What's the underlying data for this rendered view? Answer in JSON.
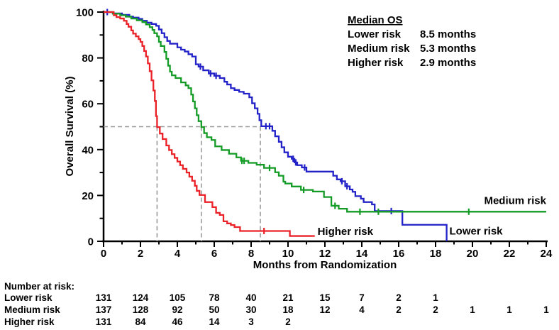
{
  "figure": {
    "background": "#FFFFFF"
  },
  "chart_data": {
    "type": "line",
    "subtype": "kaplan-meier-step",
    "title": "",
    "xlabel": "Months from Randomization",
    "ylabel": "Overall Survival (%)",
    "xlim": [
      0,
      24
    ],
    "ylim": [
      0,
      100
    ],
    "grid": "off",
    "x_major_ticks": [
      0,
      2,
      4,
      6,
      8,
      10,
      12,
      14,
      16,
      18,
      20,
      22,
      24
    ],
    "x_minor_ticks": [
      1,
      3,
      5,
      7,
      9,
      11,
      13,
      15,
      17,
      19,
      21,
      23
    ],
    "y_major_ticks": [
      0,
      20,
      40,
      60,
      80,
      100
    ],
    "y_minor_ticks": [
      10,
      30,
      50,
      70,
      90
    ],
    "reference_lines": {
      "style": "dashed",
      "color": "#9A9A9A",
      "horizontal_y": 50,
      "horizontal_x_start": 0,
      "horizontal_x_end": 8.5,
      "vertical_x": [
        2.9,
        5.3,
        8.5
      ]
    },
    "legend": {
      "position": "top-right",
      "title": "Median OS",
      "items": [
        {
          "label": "Lower risk",
          "value": "8.5 months",
          "color": "#2222C8"
        },
        {
          "label": "Medium risk",
          "value": "5.3 months",
          "color": "#149B25"
        },
        {
          "label": "Higher risk",
          "value": "2.9 months",
          "color": "#EA2127"
        }
      ]
    },
    "series": [
      {
        "name": "Lower risk",
        "color": "#2222C8",
        "median_os_months": 8.5,
        "inline_label": {
          "text": "Lower risk",
          "x": 18.75,
          "y": 3.0,
          "anchor": "start"
        },
        "end_x": 18.6,
        "points": [
          [
            0,
            100
          ],
          [
            0.5,
            99.4
          ],
          [
            1.0,
            98.8
          ],
          [
            1.4,
            98.0
          ],
          [
            1.6,
            97.6
          ],
          [
            1.9,
            97.0
          ],
          [
            2.1,
            96.2
          ],
          [
            2.35,
            95.4
          ],
          [
            2.6,
            94.8
          ],
          [
            2.85,
            94.0
          ],
          [
            3.0,
            92.4
          ],
          [
            3.15,
            90.8
          ],
          [
            3.3,
            89.0
          ],
          [
            3.45,
            87.4
          ],
          [
            3.6,
            86.2
          ],
          [
            4.0,
            84.6
          ],
          [
            4.2,
            83.6
          ],
          [
            4.4,
            82.8
          ],
          [
            4.6,
            81.6
          ],
          [
            4.8,
            80.6
          ],
          [
            5.0,
            77.2
          ],
          [
            5.15,
            76.2
          ],
          [
            5.4,
            74.6
          ],
          [
            5.7,
            73.2
          ],
          [
            6.0,
            72.2
          ],
          [
            6.3,
            71.2
          ],
          [
            6.55,
            69.6
          ],
          [
            6.7,
            68.4
          ],
          [
            6.9,
            66.8
          ],
          [
            7.1,
            66.0
          ],
          [
            7.35,
            65.2
          ],
          [
            7.6,
            64.4
          ],
          [
            7.9,
            62.8
          ],
          [
            8.05,
            60.2
          ],
          [
            8.2,
            58.0
          ],
          [
            8.35,
            55.6
          ],
          [
            8.45,
            52.8
          ],
          [
            8.55,
            50.2
          ],
          [
            9.15,
            48.2
          ],
          [
            9.3,
            45.8
          ],
          [
            9.5,
            43.4
          ],
          [
            9.65,
            41.0
          ],
          [
            9.8,
            38.8
          ],
          [
            10.0,
            36.9
          ],
          [
            10.2,
            36.0
          ],
          [
            10.35,
            34.4
          ],
          [
            10.5,
            33.2
          ],
          [
            10.75,
            32.2
          ],
          [
            11.0,
            30.4
          ],
          [
            12.45,
            28.6
          ],
          [
            12.65,
            27.0
          ],
          [
            12.85,
            26.2
          ],
          [
            13.1,
            24.0
          ],
          [
            13.35,
            22.6
          ],
          [
            13.5,
            21.6
          ],
          [
            13.65,
            19.7
          ],
          [
            13.95,
            18.6
          ],
          [
            14.1,
            17.1
          ],
          [
            14.55,
            16.1
          ],
          [
            14.7,
            13.2
          ],
          [
            16.2,
            7.2
          ],
          [
            18.6,
            0
          ]
        ],
        "censors": [
          [
            0.2,
            100
          ],
          [
            5.25,
            76.2
          ],
          [
            5.8,
            73.2
          ],
          [
            6.1,
            72.2
          ],
          [
            8.8,
            50.2
          ],
          [
            9.0,
            50.2
          ],
          [
            10.28,
            36.0
          ],
          [
            10.42,
            34.4
          ],
          [
            10.9,
            32.2
          ],
          [
            12.92,
            26.2
          ],
          [
            13.2,
            24.0
          ],
          [
            15.6,
            13.2
          ]
        ]
      },
      {
        "name": "Medium risk",
        "color": "#149B25",
        "median_os_months": 5.3,
        "inline_label": {
          "text": "Medium risk",
          "x": 24,
          "y": 16.3,
          "anchor": "end"
        },
        "end_x": 24,
        "points": [
          [
            0,
            100
          ],
          [
            0.5,
            99.3
          ],
          [
            0.9,
            98.6
          ],
          [
            1.2,
            98.0
          ],
          [
            1.5,
            97.2
          ],
          [
            1.8,
            96.4
          ],
          [
            2.1,
            95.6
          ],
          [
            2.3,
            94.6
          ],
          [
            2.5,
            93.4
          ],
          [
            2.65,
            92.2
          ],
          [
            2.75,
            90.8
          ],
          [
            2.9,
            89.4
          ],
          [
            3.0,
            87.0
          ],
          [
            3.1,
            85.2
          ],
          [
            3.3,
            82.6
          ],
          [
            3.4,
            79.6
          ],
          [
            3.5,
            76.6
          ],
          [
            3.6,
            74.0
          ],
          [
            3.7,
            72.4
          ],
          [
            3.9,
            71.2
          ],
          [
            4.2,
            69.3
          ],
          [
            4.45,
            68.0
          ],
          [
            4.6,
            66.8
          ],
          [
            4.75,
            64.0
          ],
          [
            4.85,
            61.0
          ],
          [
            4.95,
            58.0
          ],
          [
            5.05,
            55.0
          ],
          [
            5.15,
            52.4
          ],
          [
            5.3,
            49.8
          ],
          [
            5.45,
            47.2
          ],
          [
            5.6,
            45.4
          ],
          [
            5.85,
            44.2
          ],
          [
            6.05,
            41.4
          ],
          [
            6.4,
            39.8
          ],
          [
            6.8,
            38.2
          ],
          [
            7.2,
            36.6
          ],
          [
            7.45,
            35.1
          ],
          [
            7.85,
            34.2
          ],
          [
            8.3,
            33.4
          ],
          [
            8.7,
            32.0
          ],
          [
            9.3,
            30.1
          ],
          [
            9.5,
            28.6
          ],
          [
            9.75,
            26.0
          ],
          [
            9.85,
            25.2
          ],
          [
            10.2,
            23.9
          ],
          [
            10.7,
            22.4
          ],
          [
            11.35,
            21.7
          ],
          [
            11.95,
            19.3
          ],
          [
            12.35,
            15.5
          ],
          [
            12.75,
            14.2
          ],
          [
            13.2,
            12.9
          ]
        ],
        "censors": [
          [
            7.5,
            35.1
          ],
          [
            7.62,
            35.1
          ],
          [
            9.0,
            32.0
          ],
          [
            10.85,
            22.4
          ],
          [
            12.55,
            15.5
          ],
          [
            13.9,
            12.9
          ],
          [
            14.9,
            12.9
          ],
          [
            19.8,
            12.9
          ]
        ]
      },
      {
        "name": "Higher risk",
        "color": "#EA2127",
        "median_os_months": 2.9,
        "inline_label": {
          "text": "Higher risk",
          "x": 11.6,
          "y": 2.8,
          "anchor": "start"
        },
        "end_x": 11.45,
        "points": [
          [
            0,
            100
          ],
          [
            0.55,
            98.6
          ],
          [
            0.7,
            97.8
          ],
          [
            0.9,
            97.2
          ],
          [
            1.1,
            96.2
          ],
          [
            1.25,
            94.8
          ],
          [
            1.35,
            93.6
          ],
          [
            1.5,
            92.0
          ],
          [
            1.6,
            90.6
          ],
          [
            1.75,
            89.4
          ],
          [
            1.9,
            88.2
          ],
          [
            2.0,
            87.0
          ],
          [
            2.1,
            85.2
          ],
          [
            2.2,
            83.0
          ],
          [
            2.3,
            80.6
          ],
          [
            2.4,
            77.6
          ],
          [
            2.5,
            74.2
          ],
          [
            2.6,
            70.2
          ],
          [
            2.7,
            65.8
          ],
          [
            2.78,
            61.2
          ],
          [
            2.84,
            54.6
          ],
          [
            2.9,
            49.8
          ],
          [
            3.05,
            47.0
          ],
          [
            3.2,
            44.6
          ],
          [
            3.4,
            41.8
          ],
          [
            3.55,
            39.8
          ],
          [
            3.7,
            38.0
          ],
          [
            3.85,
            36.4
          ],
          [
            4.0,
            34.8
          ],
          [
            4.15,
            33.2
          ],
          [
            4.3,
            31.6
          ],
          [
            4.5,
            30.0
          ],
          [
            4.65,
            28.2
          ],
          [
            4.8,
            26.4
          ],
          [
            4.95,
            24.2
          ],
          [
            5.05,
            22.0
          ],
          [
            5.2,
            20.2
          ],
          [
            5.5,
            17.1
          ],
          [
            5.9,
            14.9
          ],
          [
            6.1,
            12.4
          ],
          [
            6.3,
            11.5
          ],
          [
            6.5,
            8.7
          ],
          [
            6.7,
            7.8
          ],
          [
            6.9,
            7.1
          ],
          [
            7.1,
            6.2
          ],
          [
            7.4,
            4.5
          ],
          [
            10.1,
            2.3
          ]
        ],
        "censors": [
          [
            8.7,
            4.5
          ]
        ]
      }
    ],
    "at_risk_table": {
      "title": "Number at risk:",
      "months": [
        0,
        2,
        4,
        6,
        8,
        10,
        12,
        14,
        16,
        18,
        20,
        22,
        24
      ],
      "rows": [
        {
          "label": "Lower risk",
          "color": "#2222C8",
          "values": [
            131,
            124,
            105,
            78,
            40,
            21,
            15,
            7,
            2,
            1
          ]
        },
        {
          "label": "Medium risk",
          "color": "#149B25",
          "values": [
            137,
            128,
            92,
            50,
            30,
            18,
            12,
            4,
            2,
            2,
            1,
            1,
            1
          ]
        },
        {
          "label": "Higher risk",
          "color": "#EA2127",
          "values": [
            131,
            84,
            46,
            14,
            3,
            2
          ]
        }
      ]
    }
  }
}
